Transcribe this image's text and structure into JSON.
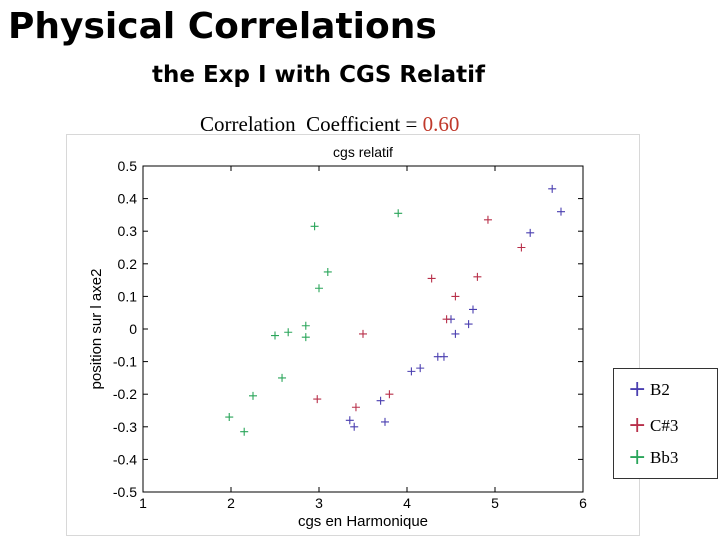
{
  "header": {
    "title": "Physical Correlations",
    "subtitle": "the Exp I with CGS Relatif",
    "correlation_label": "Correlation  Coefficient = ",
    "correlation_value": "0.60"
  },
  "colors": {
    "B2": "#4a3fb0",
    "C#3": "#b8304a",
    "Bb3": "#2aa55a",
    "value_red": "#c0392b"
  },
  "chart_data": {
    "type": "scatter",
    "title": "cgs relatif",
    "xlabel": "cgs en Harmonique",
    "ylabel": "position sur l axe2",
    "xlim": [
      1,
      6
    ],
    "ylim": [
      -0.5,
      0.5
    ],
    "xticks": [
      1,
      2,
      3,
      4,
      5,
      6
    ],
    "yticks": [
      0.5,
      0.4,
      0.3,
      0.2,
      0.1,
      0,
      -0.1,
      -0.2,
      -0.3,
      -0.4,
      -0.5
    ],
    "marker": "+",
    "legend_position": "lower-right",
    "series": [
      {
        "name": "B2",
        "color": "#4a3fb0",
        "x": [
          3.35,
          3.4,
          3.7,
          3.75,
          4.05,
          4.15,
          4.35,
          4.42,
          4.5,
          4.55,
          4.7,
          4.75,
          5.4,
          5.65,
          5.75
        ],
        "y": [
          -0.28,
          -0.3,
          -0.22,
          -0.285,
          -0.13,
          -0.12,
          -0.085,
          -0.085,
          0.03,
          -0.015,
          0.015,
          0.06,
          0.295,
          0.43,
          0.36
        ]
      },
      {
        "name": "C#3",
        "color": "#b8304a",
        "x": [
          2.98,
          3.42,
          3.5,
          3.8,
          4.28,
          4.45,
          4.55,
          4.8,
          4.92,
          5.3
        ],
        "y": [
          -0.215,
          -0.24,
          -0.015,
          -0.2,
          0.155,
          0.03,
          0.1,
          0.16,
          0.335,
          0.25
        ]
      },
      {
        "name": "Bb3",
        "color": "#2aa55a",
        "x": [
          1.98,
          2.15,
          2.25,
          2.5,
          2.58,
          2.65,
          2.85,
          2.85,
          2.95,
          3.0,
          3.1,
          3.9
        ],
        "y": [
          -0.27,
          -0.315,
          -0.205,
          -0.02,
          -0.15,
          -0.01,
          -0.025,
          0.01,
          0.315,
          0.125,
          0.175,
          0.355
        ]
      }
    ]
  },
  "legend": {
    "marker_glyph": "+",
    "items": [
      {
        "label": "B2",
        "color": "#4a3fb0"
      },
      {
        "label": "C#3",
        "color": "#b8304a"
      },
      {
        "label": "Bb3",
        "color": "#2aa55a"
      }
    ]
  }
}
